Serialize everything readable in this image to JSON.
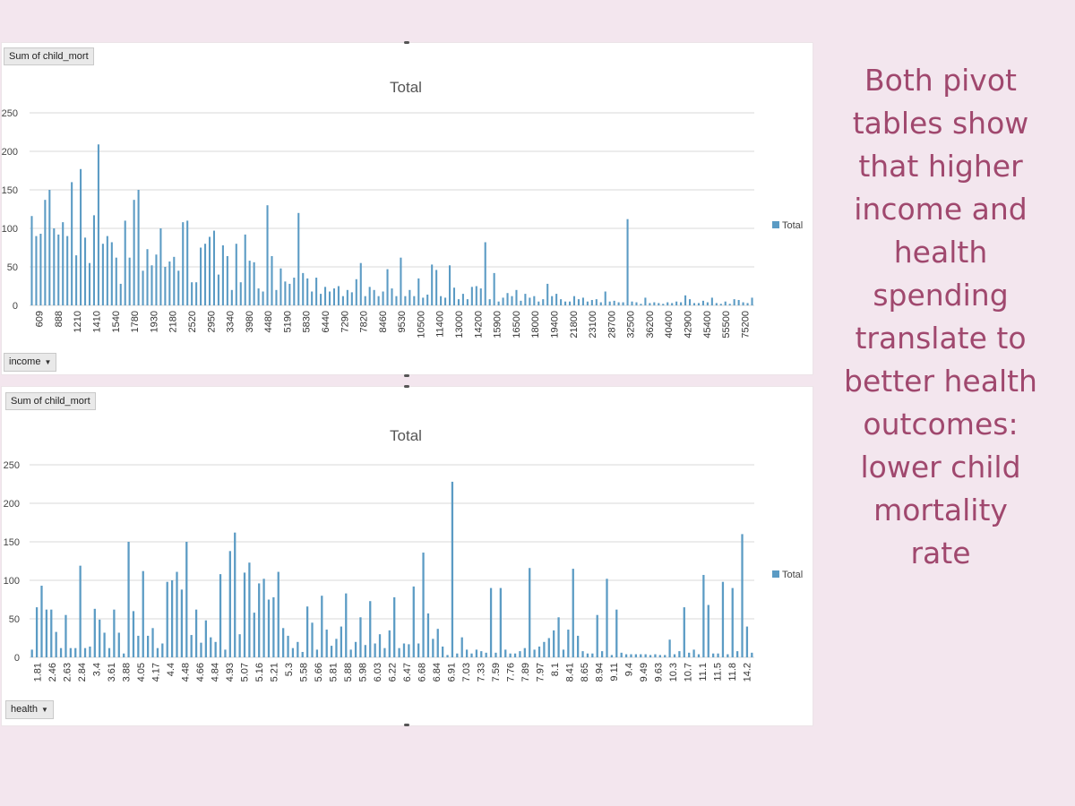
{
  "side_text": "Both pivot tables show that higher income and health spending translate to better health outcomes: lower child mortality rate",
  "colors": {
    "bar": "#5b9bc4",
    "grid": "#d9d9d9",
    "accent_text": "#a0486e"
  },
  "chart_data": [
    {
      "type": "bar",
      "title": "Total",
      "value_field_label": "Sum of child_mort",
      "axis_field_label": "income",
      "legend": [
        "Total"
      ],
      "ylim": [
        0,
        250
      ],
      "yticks": [
        0,
        50,
        100,
        150,
        200,
        250
      ],
      "xtick_labels": [
        "609",
        "888",
        "1210",
        "1410",
        "1540",
        "1780",
        "1930",
        "2180",
        "2520",
        "2950",
        "3340",
        "3980",
        "4480",
        "5190",
        "5830",
        "6440",
        "7290",
        "7820",
        "8460",
        "9530",
        "10500",
        "11400",
        "13000",
        "14200",
        "15900",
        "16500",
        "18000",
        "19400",
        "21800",
        "23100",
        "28700",
        "32500",
        "36200",
        "40400",
        "42900",
        "45400",
        "55500",
        "75200"
      ],
      "values": [
        116,
        90,
        93,
        137,
        150,
        100,
        92,
        108,
        90,
        160,
        65,
        177,
        88,
        55,
        117,
        209,
        80,
        90,
        82,
        62,
        28,
        110,
        62,
        137,
        150,
        45,
        73,
        52,
        66,
        100,
        50,
        57,
        63,
        45,
        108,
        110,
        30,
        30,
        75,
        80,
        89,
        97,
        40,
        78,
        64,
        20,
        80,
        30,
        92,
        58,
        56,
        22,
        18,
        130,
        64,
        20,
        48,
        31,
        28,
        36,
        120,
        42,
        35,
        18,
        36,
        15,
        24,
        18,
        22,
        25,
        12,
        20,
        17,
        34,
        55,
        12,
        24,
        20,
        12,
        18,
        47,
        22,
        12,
        62,
        12,
        20,
        12,
        35,
        10,
        14,
        53,
        46,
        12,
        10,
        52,
        23,
        8,
        15,
        8,
        24,
        25,
        22,
        82,
        8,
        42,
        5,
        10,
        16,
        12,
        20,
        6,
        15,
        10,
        12,
        5,
        8,
        28,
        12,
        15,
        8,
        5,
        5,
        12,
        8,
        10,
        5,
        7,
        8,
        4,
        18,
        5,
        6,
        4,
        4,
        112,
        5,
        4,
        2,
        10,
        3,
        4,
        3,
        2,
        4,
        3,
        5,
        4,
        13,
        8,
        3,
        3,
        6,
        4,
        10,
        3,
        2,
        5,
        2,
        8,
        7,
        4,
        3,
        10
      ]
    },
    {
      "type": "bar",
      "title": "Total",
      "value_field_label": "Sum of child_mort",
      "axis_field_label": "health",
      "legend": [
        "Total"
      ],
      "ylim": [
        0,
        250
      ],
      "yticks": [
        0,
        50,
        100,
        150,
        200,
        250
      ],
      "xtick_labels": [
        "1.81",
        "2.46",
        "2.63",
        "2.84",
        "3.4",
        "3.61",
        "3.88",
        "4.05",
        "4.17",
        "4.4",
        "4.48",
        "4.66",
        "4.84",
        "4.93",
        "5.07",
        "5.16",
        "5.21",
        "5.3",
        "5.58",
        "5.66",
        "5.81",
        "5.88",
        "5.98",
        "6.03",
        "6.22",
        "6.47",
        "6.68",
        "6.84",
        "6.91",
        "7.03",
        "7.33",
        "7.59",
        "7.76",
        "7.89",
        "7.97",
        "8.1",
        "8.41",
        "8.65",
        "8.94",
        "9.11",
        "9.4",
        "9.49",
        "9.63",
        "10.3",
        "10.7",
        "11.1",
        "11.5",
        "11.8",
        "14.2"
      ],
      "values": [
        10,
        65,
        93,
        62,
        62,
        33,
        12,
        55,
        12,
        12,
        119,
        12,
        14,
        63,
        49,
        32,
        12,
        62,
        32,
        5,
        150,
        60,
        28,
        112,
        28,
        38,
        12,
        18,
        98,
        100,
        111,
        88,
        150,
        29,
        62,
        19,
        48,
        26,
        20,
        108,
        10,
        138,
        162,
        30,
        110,
        123,
        58,
        96,
        102,
        75,
        78,
        111,
        38,
        28,
        12,
        20,
        7,
        66,
        45,
        10,
        80,
        36,
        15,
        24,
        40,
        83,
        10,
        20,
        52,
        16,
        73,
        18,
        30,
        12,
        35,
        78,
        12,
        18,
        17,
        92,
        18,
        136,
        57,
        24,
        37,
        14,
        3,
        228,
        5,
        26,
        10,
        5,
        10,
        8,
        6,
        90,
        6,
        90,
        10,
        5,
        5,
        8,
        12,
        116,
        10,
        14,
        20,
        25,
        35,
        52,
        10,
        36,
        115,
        28,
        8,
        5,
        5,
        55,
        8,
        102,
        3,
        62,
        6,
        4,
        4,
        4,
        4,
        4,
        3,
        4,
        3,
        3,
        23,
        4,
        8,
        65,
        6,
        10,
        4,
        107,
        68,
        5,
        5,
        98,
        4,
        90,
        8,
        160,
        40,
        6
      ]
    }
  ]
}
